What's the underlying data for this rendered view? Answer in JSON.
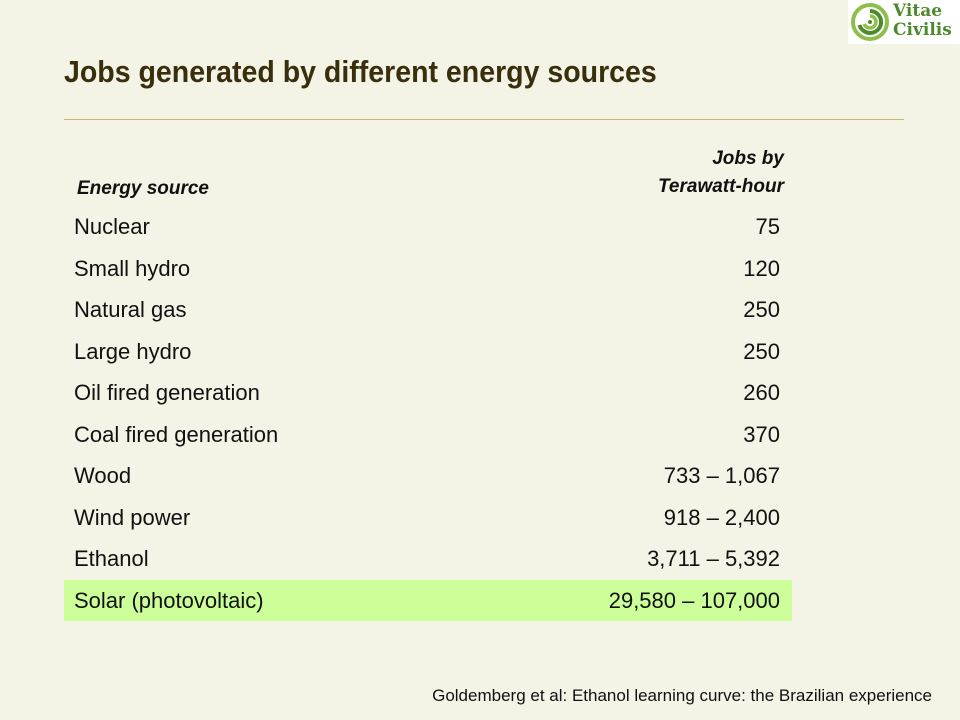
{
  "title": "Jobs generated by different energy sources",
  "logo": {
    "text_line1": "Vitae",
    "text_line2": "Civilis",
    "colors": {
      "primary": "#4d8a2c",
      "light": "#8cc04a"
    }
  },
  "table": {
    "headers": {
      "source": "Energy source",
      "jobs_line1": "Jobs by",
      "jobs_line2": "Terawatt-hour"
    },
    "rows": [
      {
        "source": "Nuclear",
        "jobs": "75"
      },
      {
        "source": "Small hydro",
        "jobs": "120"
      },
      {
        "source": "Natural gas",
        "jobs": "250"
      },
      {
        "source": "Large hydro",
        "jobs": "250"
      },
      {
        "source": "Oil fired generation",
        "jobs": "260"
      },
      {
        "source": "Coal fired generation",
        "jobs": "370"
      },
      {
        "source": "Wood",
        "jobs": "733 – 1,067"
      },
      {
        "source": "Wind power",
        "jobs": "918 – 2,400"
      },
      {
        "source": "Ethanol",
        "jobs": "3,711 – 5,392"
      },
      {
        "source": "Solar (photovoltaic)",
        "jobs": "29,580 – 107,000"
      }
    ],
    "highlight_color": "#ccff99"
  },
  "source_note": "Goldemberg et al: Ethanol learning curve: the Brazilian experience",
  "colors": {
    "background": "#f3f3e6",
    "title": "#3a2f0c",
    "rule": "#c4bd6a"
  }
}
